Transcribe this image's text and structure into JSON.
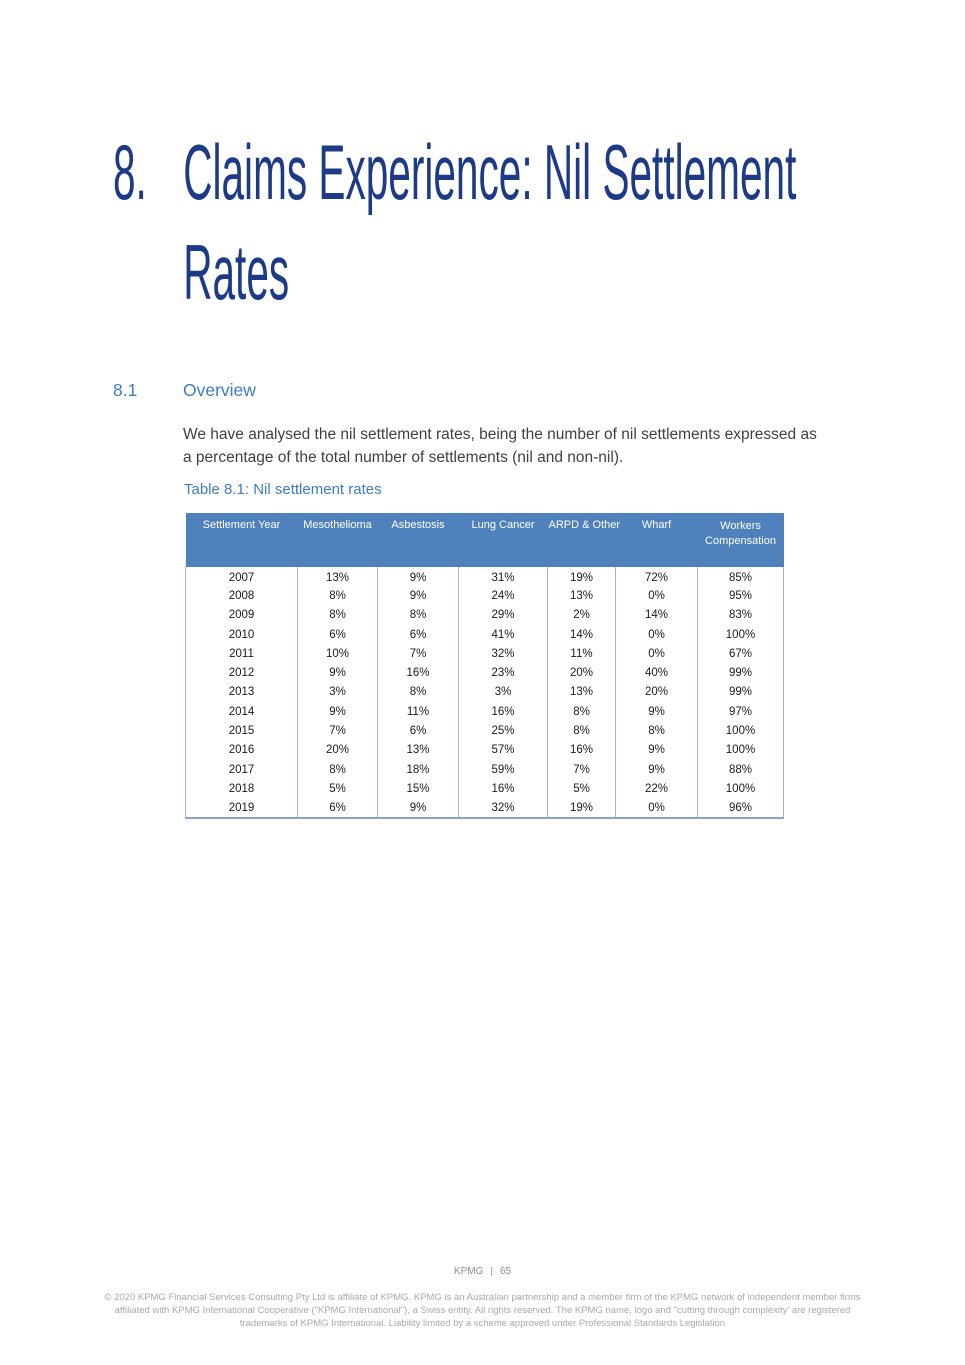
{
  "chapter": {
    "number": "8.",
    "title_line1": "Claims Experience: Nil Settlement",
    "title_line2": "Rates"
  },
  "section": {
    "number": "8.1",
    "heading": "Overview"
  },
  "body": {
    "lines": [
      "We have analysed the nil settlement rates, being the number of nil settlements expressed as",
      "a percentage of the total number of settlements (nil and non-nil)."
    ]
  },
  "table": {
    "caption": "Table 8.1: Nil settlement rates",
    "columns": [
      "Settlement Year",
      "Mesothelioma",
      "Asbestosis",
      "Lung Cancer",
      "ARPD & Other",
      "Wharf",
      "Workers Compensation"
    ],
    "rows": [
      [
        "2007",
        "13%",
        "9%",
        "31%",
        "19%",
        "72%",
        "85%"
      ],
      [
        "2008",
        "8%",
        "9%",
        "24%",
        "13%",
        "0%",
        "95%"
      ],
      [
        "2009",
        "8%",
        "8%",
        "29%",
        "2%",
        "14%",
        "83%"
      ],
      [
        "2010",
        "6%",
        "6%",
        "41%",
        "14%",
        "0%",
        "100%"
      ],
      [
        "2011",
        "10%",
        "7%",
        "32%",
        "11%",
        "0%",
        "67%"
      ],
      [
        "2012",
        "9%",
        "16%",
        "23%",
        "20%",
        "40%",
        "99%"
      ],
      [
        "2013",
        "3%",
        "8%",
        "3%",
        "13%",
        "20%",
        "99%"
      ],
      [
        "2014",
        "9%",
        "11%",
        "16%",
        "8%",
        "9%",
        "97%"
      ],
      [
        "2015",
        "7%",
        "6%",
        "25%",
        "8%",
        "8%",
        "100%"
      ],
      [
        "2016",
        "20%",
        "13%",
        "57%",
        "16%",
        "9%",
        "100%"
      ],
      [
        "2017",
        "8%",
        "18%",
        "59%",
        "7%",
        "9%",
        "88%"
      ],
      [
        "2018",
        "5%",
        "15%",
        "16%",
        "5%",
        "22%",
        "100%"
      ],
      [
        "2019",
        "6%",
        "9%",
        "32%",
        "19%",
        "0%",
        "96%"
      ]
    ]
  },
  "footer": {
    "brand": "KPMG",
    "separator": "|",
    "page_number": "65",
    "legal_lines": [
      "© 2020 KPMG Financial Services Consulting Pty Ltd is affiliate of KPMG. KPMG is an Australian partnership and a member firm of the KPMG network of independent member firms",
      "affiliated with KPMG International Cooperative (\"KPMG International\"), a Swiss entity. All rights reserved. The KPMG name, logo and \"cutting through complexity' are registered",
      "trademarks of KPMG International. Liability limited by a scheme approved under Professional Standards Legislation"
    ]
  },
  "colors": {
    "title_blue": "#1d3a87",
    "heading_blue": "#3e7cbf",
    "table_header_bg": "#4f81bd",
    "table_border": "#9db8da"
  }
}
